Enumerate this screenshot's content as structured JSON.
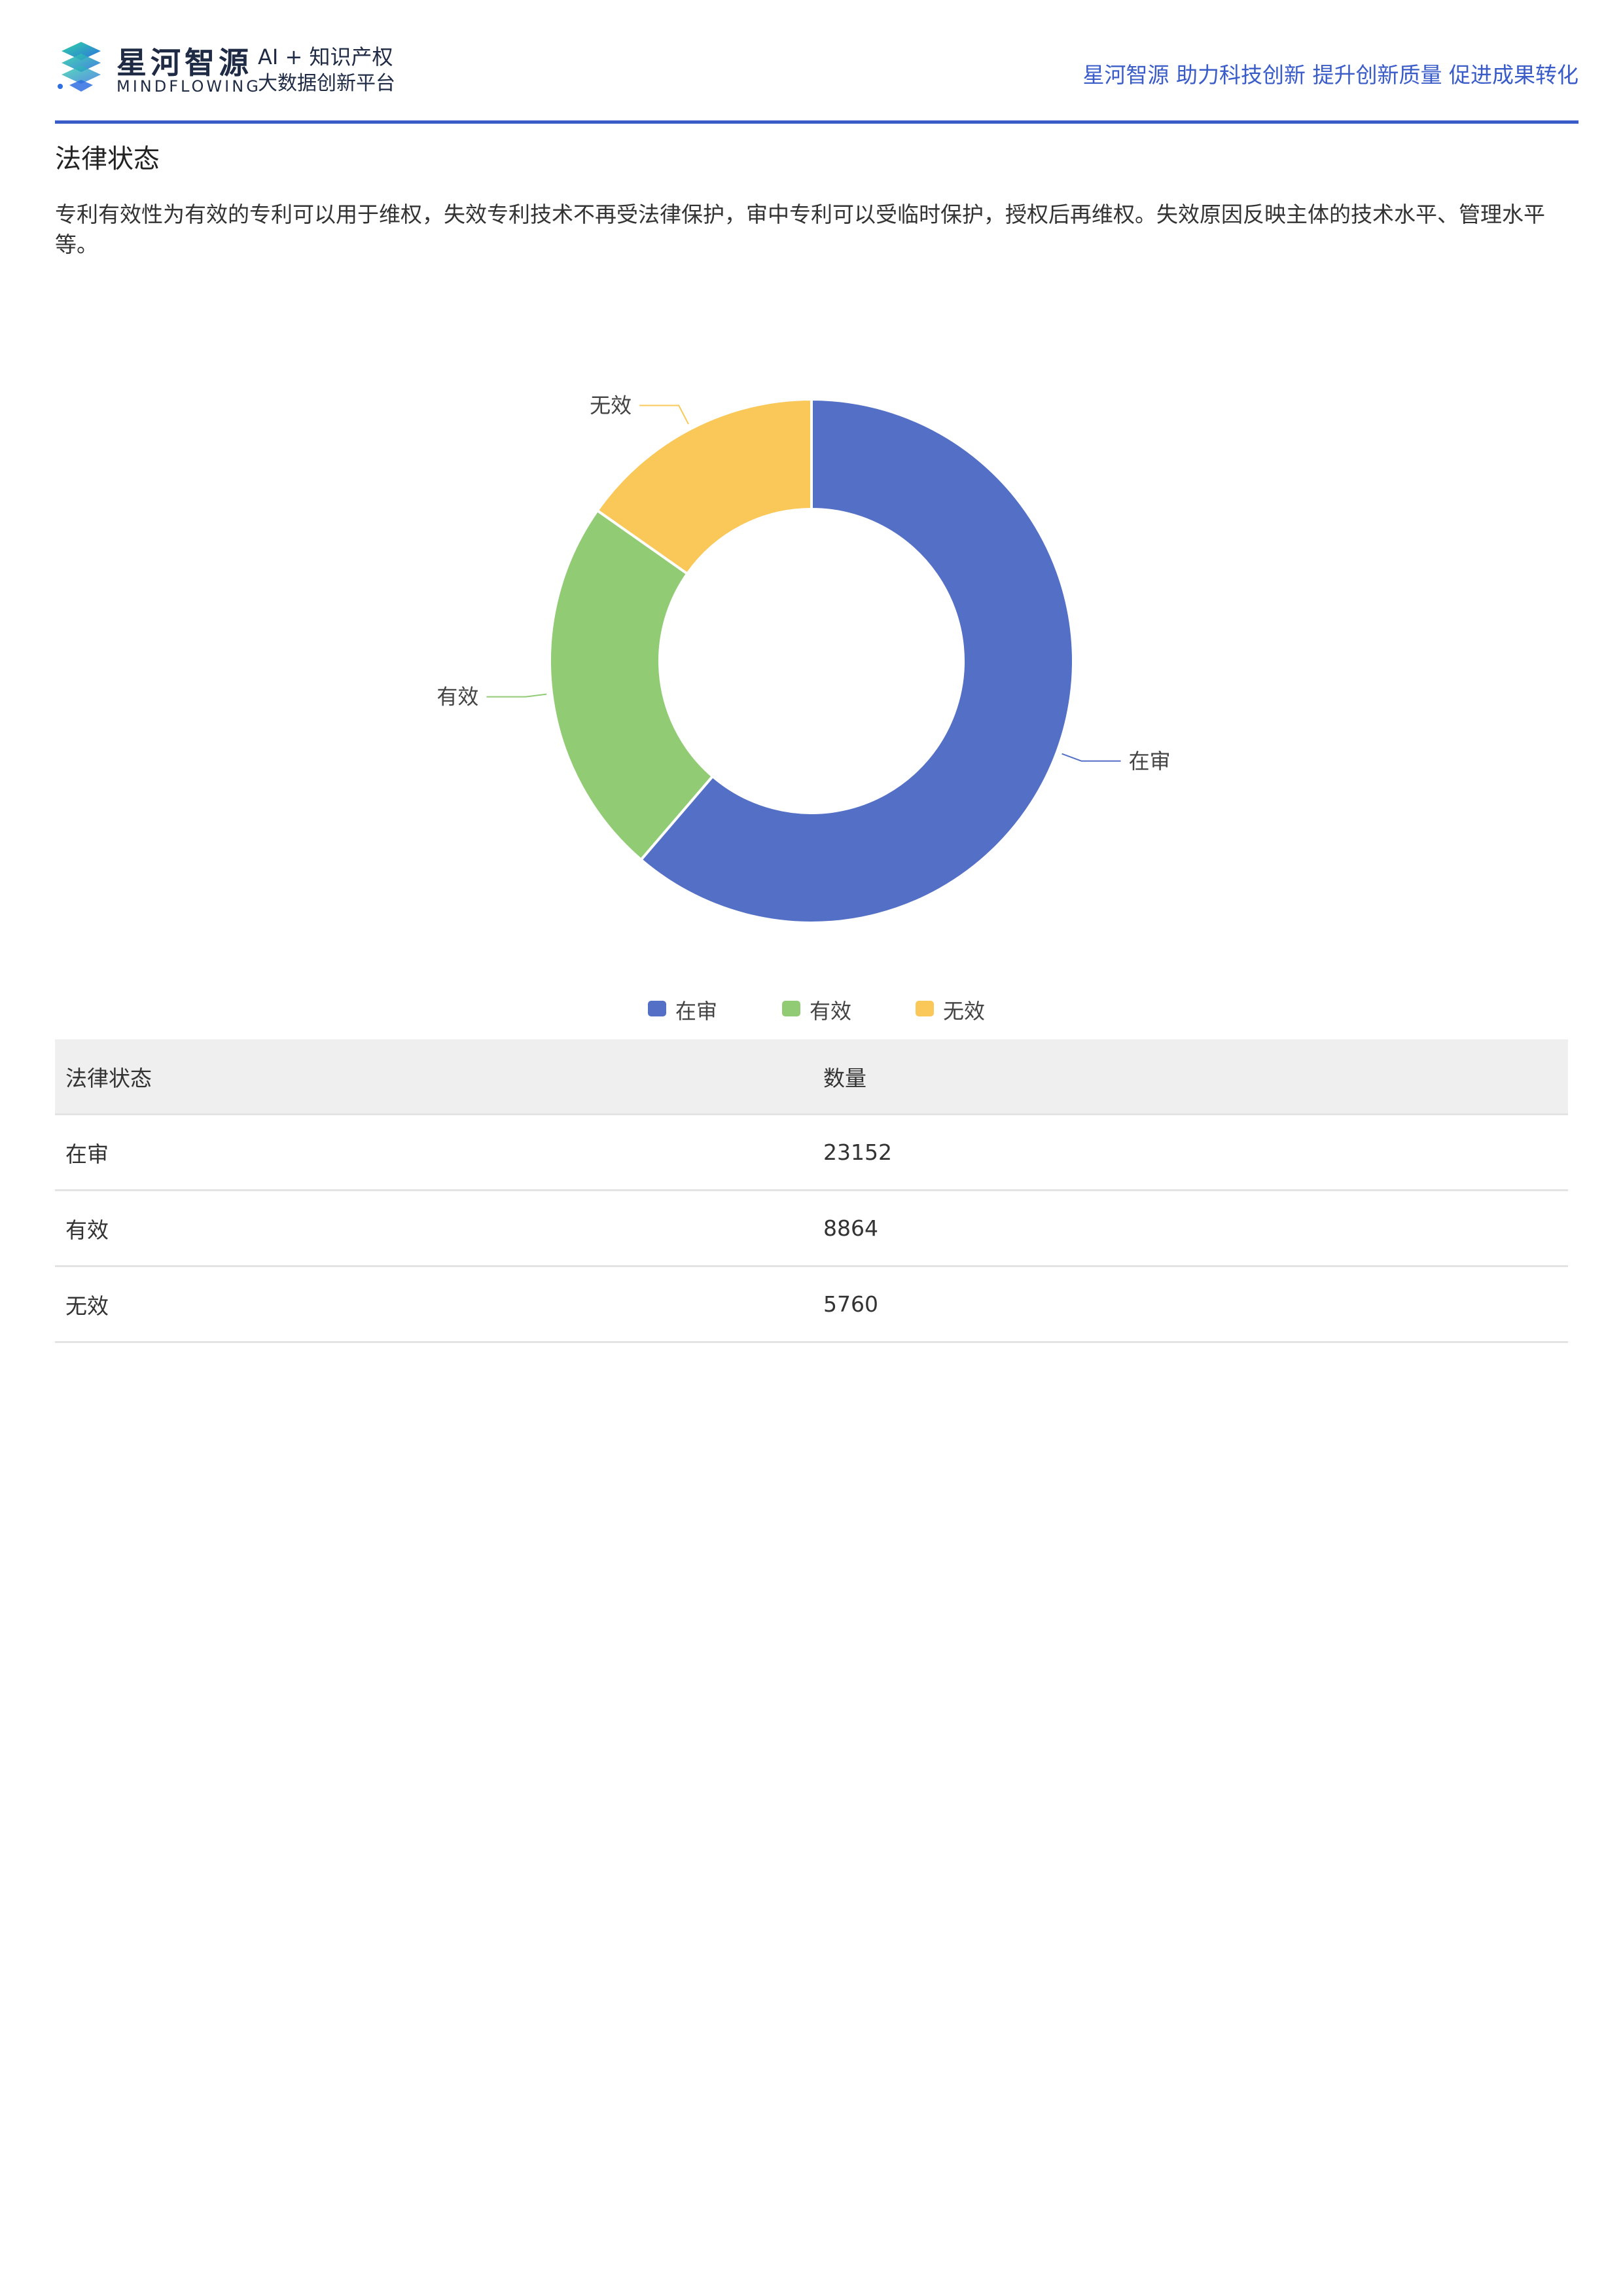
{
  "header": {
    "brand_name": "星河智源",
    "brand_en": "MINDFLOWING",
    "tagline_1": "AI + 知识产权",
    "tagline_2": "大数据创新平台",
    "slogan": "星河智源 助力科技创新 提升创新质量 促进成果转化",
    "logo_icon": "stacked-diamond-logo-icon"
  },
  "section": {
    "title": "法律状态",
    "description": "专利有效性为有效的专利可以用于维权，失效专利技术不再受法律保护，审中专利可以受临时保护，授权后再维权。失效原因反映主体的技术水平、管理水平等。"
  },
  "chart_data": {
    "type": "pie",
    "variant": "donut",
    "categories": [
      "在审",
      "有效",
      "无效"
    ],
    "values": [
      23152,
      8864,
      5760
    ],
    "colors": [
      "#5470c6",
      "#91cc75",
      "#fac858"
    ],
    "title": "",
    "legend": {
      "position": "bottom",
      "items": [
        "在审",
        "有效",
        "无效"
      ]
    }
  },
  "table": {
    "headers": [
      "法律状态",
      "数量"
    ],
    "rows": [
      [
        "在审",
        "23152"
      ],
      [
        "有效",
        "8864"
      ],
      [
        "无效",
        "5760"
      ]
    ]
  }
}
